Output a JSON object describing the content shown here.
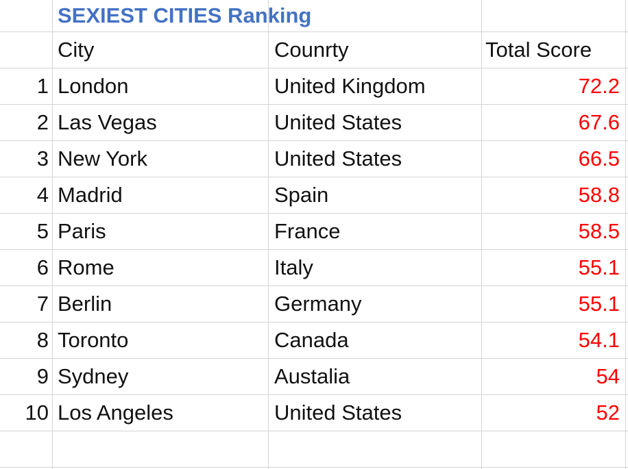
{
  "title": "SEXIEST CITIES Ranking",
  "headers": {
    "city": "City",
    "country": "Counrty",
    "score": "Total Score"
  },
  "rows": [
    {
      "rank": "1",
      "city": "London",
      "country": "United Kingdom",
      "score": "72.2"
    },
    {
      "rank": "2",
      "city": "Las Vegas",
      "country": "United States",
      "score": "67.6"
    },
    {
      "rank": "3",
      "city": "New York",
      "country": "United States",
      "score": "66.5"
    },
    {
      "rank": "4",
      "city": "Madrid",
      "country": "Spain",
      "score": "58.8"
    },
    {
      "rank": "5",
      "city": "Paris",
      "country": "France",
      "score": "58.5"
    },
    {
      "rank": "6",
      "city": "Rome",
      "country": "Italy",
      "score": "55.1"
    },
    {
      "rank": "7",
      "city": "Berlin",
      "country": "Germany",
      "score": "55.1"
    },
    {
      "rank": "8",
      "city": "Toronto",
      "country": "Canada",
      "score": "54.1"
    },
    {
      "rank": "9",
      "city": "Sydney",
      "country": "Austalia",
      "score": "54"
    },
    {
      "rank": "10",
      "city": "Los Angeles",
      "country": "United States",
      "score": "52"
    }
  ],
  "colors": {
    "title": "#4472c4",
    "score": "#ff0000",
    "grid": "#d4d4d4"
  }
}
